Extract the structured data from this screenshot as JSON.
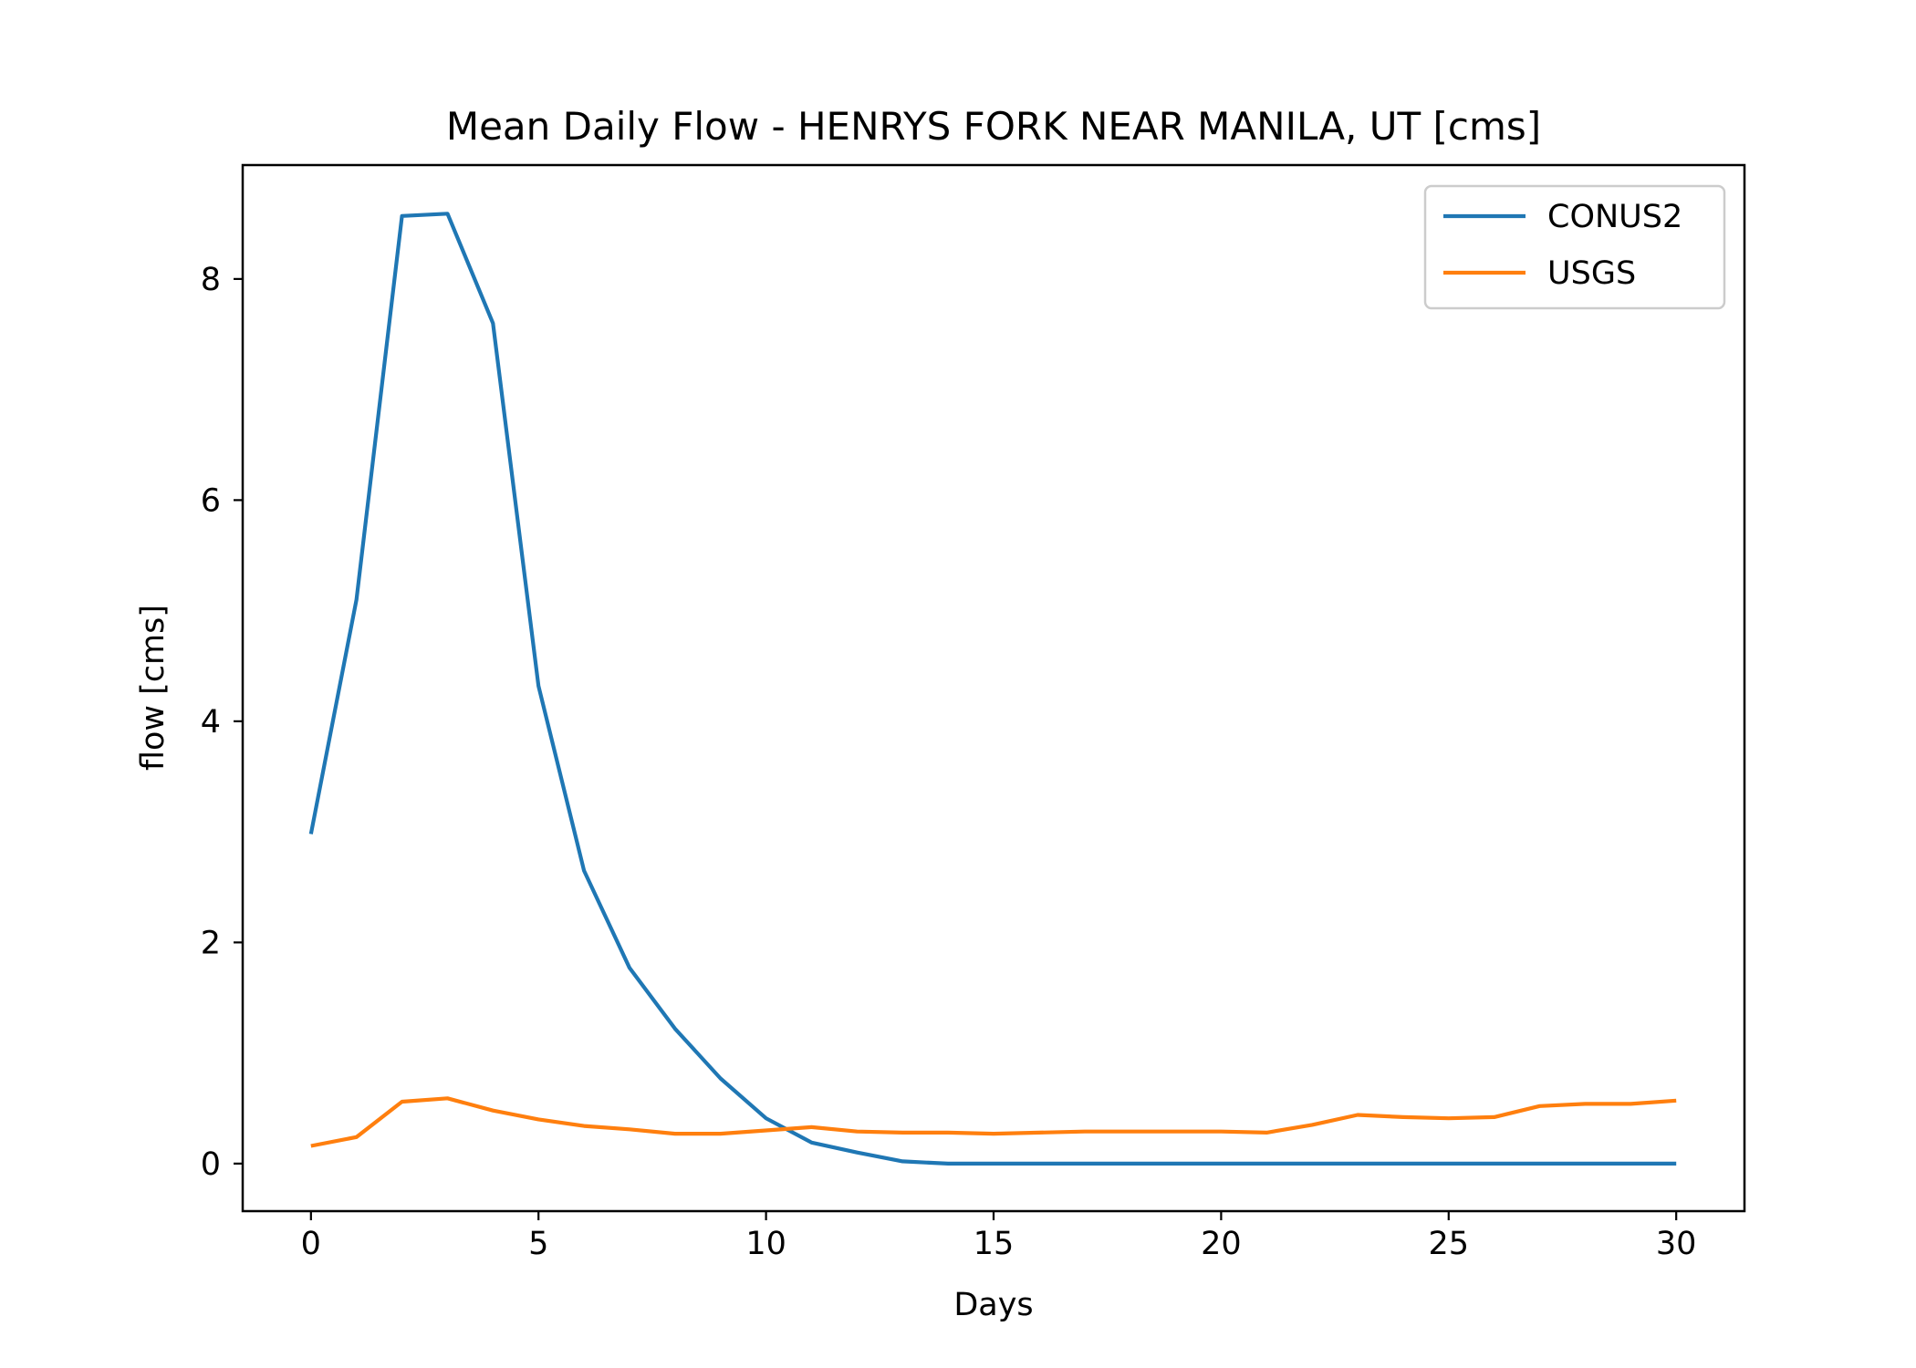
{
  "chart_data": {
    "type": "line",
    "title": "Mean Daily Flow - HENRYS FORK NEAR MANILA, UT [cms]",
    "xlabel": "Days",
    "ylabel": "flow [cms]",
    "xlim": [
      -1.5,
      31.5
    ],
    "ylim": [
      -0.43,
      9.03
    ],
    "x_ticks": [
      0,
      5,
      10,
      15,
      20,
      25,
      30
    ],
    "y_ticks": [
      0,
      2,
      4,
      6,
      8
    ],
    "grid": false,
    "legend_position": "top-right",
    "x": [
      0,
      1,
      2,
      3,
      4,
      5,
      6,
      7,
      8,
      9,
      10,
      11,
      12,
      13,
      14,
      15,
      16,
      17,
      18,
      19,
      20,
      21,
      22,
      23,
      24,
      25,
      26,
      27,
      28,
      29,
      30
    ],
    "series": [
      {
        "name": "CONUS2",
        "color": "#1f77b4",
        "values": [
          2.98,
          5.1,
          8.57,
          8.59,
          7.6,
          4.32,
          2.65,
          1.77,
          1.22,
          0.77,
          0.41,
          0.19,
          0.1,
          0.02,
          0.0,
          0.0,
          0.0,
          0.0,
          0.0,
          0.0,
          0.0,
          0.0,
          0.0,
          0.0,
          0.0,
          0.0,
          0.0,
          0.0,
          0.0,
          0.0,
          0.0
        ]
      },
      {
        "name": "USGS",
        "color": "#ff7f0e",
        "values": [
          0.16,
          0.24,
          0.56,
          0.59,
          0.48,
          0.4,
          0.34,
          0.31,
          0.27,
          0.27,
          0.3,
          0.33,
          0.29,
          0.28,
          0.28,
          0.27,
          0.28,
          0.29,
          0.29,
          0.29,
          0.29,
          0.28,
          0.35,
          0.44,
          0.42,
          0.41,
          0.42,
          0.52,
          0.54,
          0.54,
          0.57
        ]
      }
    ]
  }
}
